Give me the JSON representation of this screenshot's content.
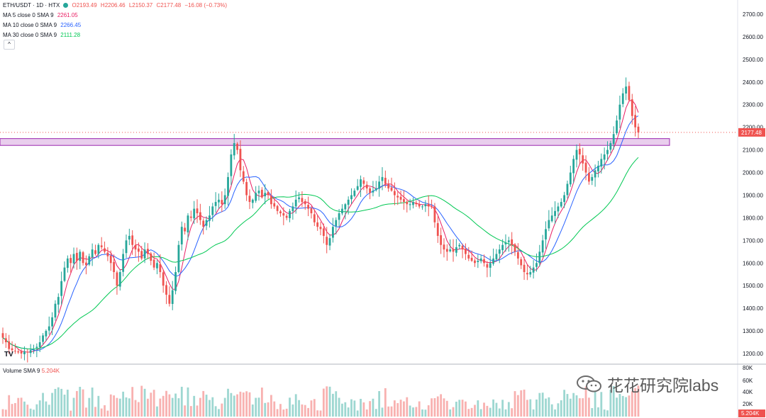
{
  "legend": {
    "symbol": "ETH/USDT · 1D · HTX",
    "open": "O2193.49",
    "high": "H2206.46",
    "low": "L2150.37",
    "close": "C2177.48",
    "change": "−16.08 (−0.73%)",
    "ma5_label": "MA 5 close 0 SMA 9",
    "ma5_value": "2261.05",
    "ma10_label": "MA 10 close 0 SMA 9",
    "ma10_value": "2266.45",
    "ma30_label": "MA 30 close 0 SMA 9",
    "ma30_value": "2111.28",
    "collapse_glyph": "^"
  },
  "volume": {
    "label": "Volume SMA 9",
    "value": "5.204K",
    "axis_ticks": [
      "80K",
      "60K",
      "40K",
      "20K"
    ],
    "last_badge": "5.204K"
  },
  "price_axis": {
    "ticks": [
      "2700.00",
      "2600.00",
      "2500.00",
      "2400.00",
      "2300.00",
      "2200.00",
      "2100.00",
      "2000.00",
      "1900.00",
      "1800.00",
      "1700.00",
      "1600.00",
      "1500.00",
      "1400.00",
      "1300.00",
      "1200.00"
    ],
    "last_badge": "2177.48"
  },
  "watermark": "花花研究院labs",
  "tv_logo": "TV",
  "colors": {
    "up": "#26a69a",
    "down": "#ef5350",
    "ma5": "#e91e63",
    "ma10": "#2962ff",
    "ma30": "#00c853",
    "zone": "#e1bee7",
    "zone_border": "#9c27b0"
  },
  "chart_data": {
    "type": "candlestick",
    "y_range": [
      1150,
      2750
    ],
    "zone": [
      2120,
      2150
    ],
    "last_price": 2177.48,
    "series": [
      {
        "name": "close",
        "values": [
          1270,
          1250,
          1220,
          1215,
          1210,
          1205,
          1200,
          1210,
          1205,
          1215,
          1220,
          1230,
          1250,
          1280,
          1300,
          1320,
          1360,
          1420,
          1450,
          1520,
          1580,
          1620,
          1600,
          1640,
          1610,
          1650,
          1600,
          1590,
          1630,
          1660,
          1640,
          1680,
          1670,
          1650,
          1630,
          1600,
          1560,
          1500,
          1560,
          1640,
          1700,
          1720,
          1680,
          1660,
          1650,
          1620,
          1660,
          1640,
          1610,
          1580,
          1600,
          1560,
          1500,
          1460,
          1420,
          1480,
          1560,
          1680,
          1760,
          1740,
          1810,
          1800,
          1840,
          1820,
          1790,
          1760,
          1790,
          1810,
          1850,
          1870,
          1880,
          1860,
          1900,
          1980,
          2080,
          2130,
          2100,
          2010,
          1960,
          1900,
          1870,
          1880,
          1910,
          1920,
          1890,
          1910,
          1900,
          1860,
          1850,
          1830,
          1820,
          1810,
          1800,
          1830,
          1850,
          1880,
          1890,
          1870,
          1860,
          1840,
          1820,
          1780,
          1760,
          1750,
          1720,
          1680,
          1710,
          1760,
          1790,
          1820,
          1840,
          1860,
          1880,
          1900,
          1920,
          1940,
          1970,
          1950,
          1930,
          1910,
          1920,
          1930,
          1960,
          1980,
          1950,
          1930,
          1920,
          1900,
          1890,
          1880,
          1870,
          1860,
          1860,
          1870,
          1860,
          1850,
          1850,
          1860,
          1850,
          1850,
          1780,
          1720,
          1680,
          1660,
          1650,
          1660,
          1650,
          1670,
          1680,
          1660,
          1640,
          1620,
          1610,
          1600,
          1610,
          1620,
          1600,
          1580,
          1600,
          1620,
          1640,
          1660,
          1680,
          1690,
          1700,
          1680,
          1650,
          1620,
          1590,
          1560,
          1550,
          1560,
          1580,
          1600,
          1650,
          1700,
          1750,
          1790,
          1810,
          1830,
          1850,
          1870,
          1900,
          1950,
          2000,
          2060,
          2100,
          2080,
          2040,
          2000,
          1960,
          1980,
          2010,
          2030,
          2060,
          2080,
          2100,
          2130,
          2170,
          2230,
          2300,
          2350,
          2380,
          2320,
          2250,
          2200,
          2177
        ]
      }
    ]
  }
}
